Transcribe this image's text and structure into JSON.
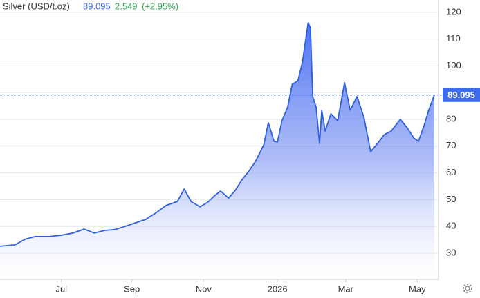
{
  "chart_data": {
    "type": "area",
    "title": "Silver (USD/t.oz)",
    "last_price": 89.095,
    "change": 2.549,
    "change_pct": {
      "value": 2.95,
      "label": "(+2.95%)"
    },
    "color": "#2f5fe0",
    "price_color": "#3d6cf0",
    "change_color": "#2fa84f",
    "grid": true,
    "x": [
      -54,
      -41,
      -32,
      -23,
      -11,
      0,
      10,
      20,
      29,
      38,
      47,
      56,
      65,
      74,
      83,
      92,
      102,
      108,
      114,
      122,
      129,
      135,
      140,
      147,
      153,
      159,
      165,
      171,
      178,
      182,
      187,
      190,
      194,
      199,
      203,
      208,
      212,
      217,
      219,
      221,
      224,
      227,
      229,
      232,
      237,
      243,
      249,
      254,
      260,
      266,
      272,
      278,
      284,
      290,
      298,
      304,
      310,
      314,
      319,
      323,
      328
    ],
    "series": [
      {
        "name": "Silver",
        "values": [
          32.6,
          33.1,
          35.2,
          36.2,
          36.2,
          36.7,
          37.5,
          39.0,
          37.5,
          38.5,
          38.8,
          40.0,
          41.3,
          42.6,
          45.0,
          47.8,
          49.3,
          54.0,
          49.3,
          47.3,
          49.1,
          51.6,
          53.2,
          50.6,
          53.5,
          57.6,
          60.7,
          64.5,
          70.5,
          78.7,
          71.8,
          71.5,
          79.5,
          84.6,
          93.1,
          94.4,
          101.4,
          116.1,
          114.3,
          88.5,
          84.6,
          71.0,
          83.4,
          75.6,
          82.1,
          79.5,
          93.7,
          83.4,
          88.5,
          80.8,
          67.9,
          71.0,
          74.3,
          75.6,
          80.0,
          76.9,
          73.0,
          71.8,
          77.7,
          83.4,
          89.095
        ]
      }
    ],
    "xlim": [
      -54,
      328
    ],
    "xticks": [
      {
        "value": 0,
        "label": "Jul"
      },
      {
        "value": 62,
        "label": "Sep"
      },
      {
        "value": 125,
        "label": "Nov"
      },
      {
        "value": 190,
        "label": "2026"
      },
      {
        "value": 250,
        "label": "Mar"
      },
      {
        "value": 313,
        "label": "May"
      }
    ],
    "ylim": [
      20.2,
      124.6
    ],
    "yticks": [
      30,
      40,
      50,
      60,
      70,
      80,
      90,
      100,
      110,
      120
    ]
  }
}
